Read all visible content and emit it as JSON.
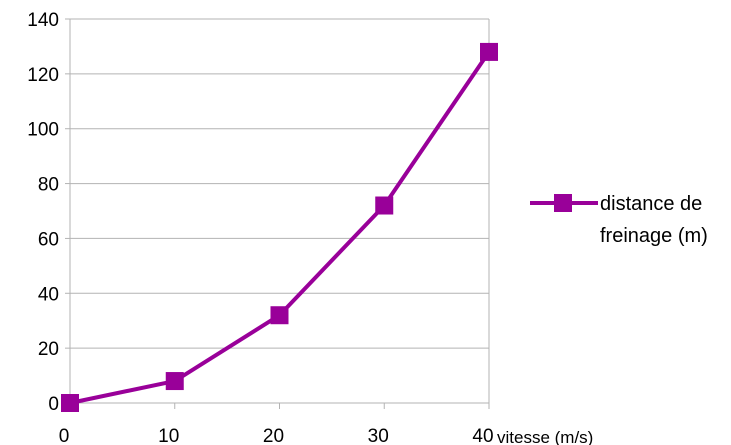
{
  "chart_data": {
    "type": "line",
    "title": "",
    "xlabel": "vitesse (m/s)",
    "ylabel": "",
    "x": [
      0,
      10,
      20,
      30,
      40
    ],
    "xlim": [
      0,
      40
    ],
    "ylim": [
      0,
      140
    ],
    "x_ticks": [
      "0",
      "10",
      "20",
      "30",
      "40"
    ],
    "y_ticks": [
      "0",
      "20",
      "40",
      "60",
      "80",
      "100",
      "120",
      "140"
    ],
    "grid": "horizontal",
    "legend_position": "right",
    "series": [
      {
        "name": "distance de freinage (m)",
        "values": [
          0,
          8,
          32,
          72,
          128
        ],
        "color": "#990099",
        "marker": "square"
      }
    ]
  }
}
